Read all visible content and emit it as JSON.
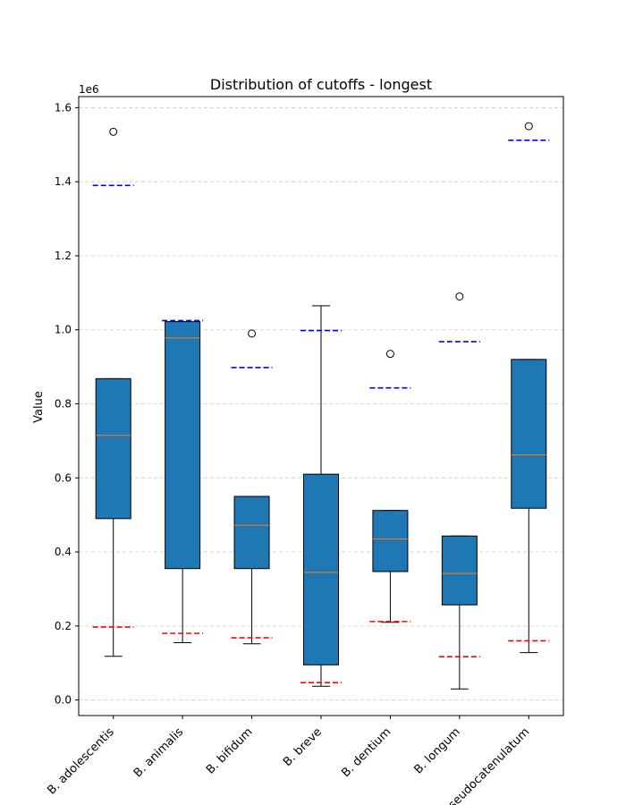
{
  "chart_data": {
    "type": "box",
    "title": "Distribution of cutoffs - longest",
    "ylabel": "Value",
    "xlabel": "",
    "scale_label": "1e6",
    "ylim": [
      -42000,
      1630000
    ],
    "yticks": [
      0,
      200000,
      400000,
      600000,
      800000,
      1000000,
      1200000,
      1400000,
      1600000
    ],
    "ytick_labels": [
      "0.0",
      "0.2",
      "0.4",
      "0.6",
      "0.8",
      "1.0",
      "1.2",
      "1.4",
      "1.6"
    ],
    "grid": "horizontal-dashed",
    "categories": [
      "B. adolescentis",
      "B. animalis",
      "B. bifidum",
      "B. breve",
      "B. dentium",
      "B. longum",
      "B. pseudocatenulatum"
    ],
    "box_color": "#1f77b4",
    "median_color": "#ff7f0e",
    "upper_cutoff_color": "#0000ff",
    "lower_cutoff_color": "#ff0000",
    "boxes": [
      {
        "whisker_low": 118000,
        "q1": 490000,
        "median": 715000,
        "q3": 868000,
        "whisker_high": 868000,
        "outliers": [
          1535000
        ],
        "upper_cutoff": 1390000,
        "lower_cutoff": 197000
      },
      {
        "whisker_low": 155000,
        "q1": 355000,
        "median": 978000,
        "q3": 1022000,
        "whisker_high": 1022000,
        "outliers": [],
        "upper_cutoff": 1025000,
        "lower_cutoff": 180000
      },
      {
        "whisker_low": 152000,
        "q1": 355000,
        "median": 472000,
        "q3": 550000,
        "whisker_high": 550000,
        "outliers": [
          990000
        ],
        "upper_cutoff": 898000,
        "lower_cutoff": 168000
      },
      {
        "whisker_low": 37000,
        "q1": 95000,
        "median": 345000,
        "q3": 610000,
        "whisker_high": 1065000,
        "outliers": [],
        "upper_cutoff": 998000,
        "lower_cutoff": 47000
      },
      {
        "whisker_low": 210000,
        "q1": 347000,
        "median": 435000,
        "q3": 512000,
        "whisker_high": 512000,
        "outliers": [
          935000
        ],
        "upper_cutoff": 843000,
        "lower_cutoff": 212000
      },
      {
        "whisker_low": 30000,
        "q1": 257000,
        "median": 342000,
        "q3": 443000,
        "whisker_high": 443000,
        "outliers": [
          1090000
        ],
        "upper_cutoff": 968000,
        "lower_cutoff": 117000
      },
      {
        "whisker_low": 128000,
        "q1": 518000,
        "median": 662000,
        "q3": 920000,
        "whisker_high": 920000,
        "outliers": [
          1550000
        ],
        "upper_cutoff": 1512000,
        "lower_cutoff": 160000
      }
    ]
  }
}
